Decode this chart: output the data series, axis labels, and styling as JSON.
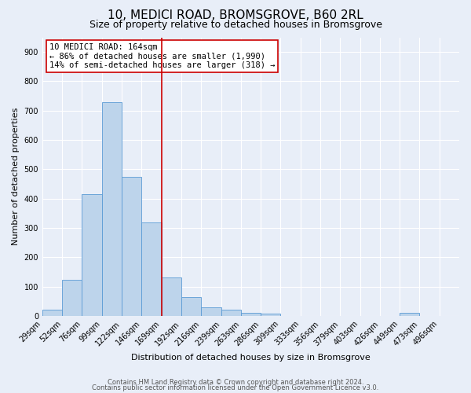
{
  "title": "10, MEDICI ROAD, BROMSGROVE, B60 2RL",
  "subtitle": "Size of property relative to detached houses in Bromsgrove",
  "xlabel": "Distribution of detached houses by size in Bromsgrove",
  "ylabel": "Number of detached properties",
  "bin_labels": [
    "29sqm",
    "52sqm",
    "76sqm",
    "99sqm",
    "122sqm",
    "146sqm",
    "169sqm",
    "192sqm",
    "216sqm",
    "239sqm",
    "263sqm",
    "286sqm",
    "309sqm",
    "333sqm",
    "356sqm",
    "379sqm",
    "403sqm",
    "426sqm",
    "449sqm",
    "473sqm",
    "496sqm"
  ],
  "bar_heights": [
    20,
    122,
    414,
    730,
    475,
    318,
    130,
    65,
    28,
    22,
    10,
    8,
    0,
    0,
    0,
    0,
    0,
    0,
    10,
    0,
    0
  ],
  "bar_color": "#bdd4eb",
  "bar_edgecolor": "#5b9bd5",
  "vline_x_index": 6,
  "vline_color": "#cc0000",
  "annotation_text": "10 MEDICI ROAD: 164sqm\n← 86% of detached houses are smaller (1,990)\n14% of semi-detached houses are larger (318) →",
  "annotation_box_edgecolor": "#cc0000",
  "annotation_box_facecolor": "#ffffff",
  "ylim": [
    0,
    950
  ],
  "yticks": [
    0,
    100,
    200,
    300,
    400,
    500,
    600,
    700,
    800,
    900
  ],
  "footer_line1": "Contains HM Land Registry data © Crown copyright and database right 2024.",
  "footer_line2": "Contains public sector information licensed under the Open Government Licence v3.0.",
  "background_color": "#e8eef8",
  "grid_color": "#ffffff",
  "title_fontsize": 11,
  "subtitle_fontsize": 9,
  "ylabel_fontsize": 8,
  "xlabel_fontsize": 8,
  "tick_fontsize": 7,
  "annot_fontsize": 7.5,
  "footer_fontsize": 6
}
